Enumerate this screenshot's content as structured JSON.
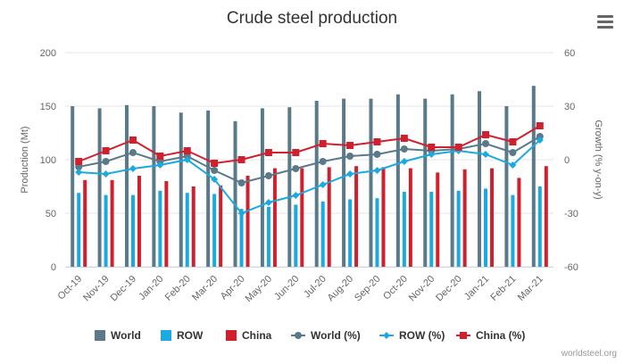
{
  "title": "Crude steel production",
  "menu_icon": "hamburger-menu-icon",
  "credit": "worldsteel.org",
  "colors": {
    "world": "#5a7a8a",
    "row": "#1ba9e1",
    "china": "#d0202e"
  },
  "chart_data": {
    "type": "bar+line",
    "title": "Crude steel production",
    "categories": [
      "Oct-19",
      "Nov-19",
      "Dec-19",
      "Jan-20",
      "Feb-20",
      "Mar-20",
      "Apr-20",
      "May-20",
      "Jun-20",
      "Jul-20",
      "Aug-20",
      "Sep-20",
      "Oct-20",
      "Nov-20",
      "Dec-20",
      "Jan-21",
      "Feb-21",
      "Mar-21"
    ],
    "y_left": {
      "label": "Production (Mt)",
      "min": 0,
      "max": 200,
      "ticks": [
        0,
        50,
        100,
        150,
        200
      ]
    },
    "y_right": {
      "label": "Growth (% y-on-y)",
      "min": -60,
      "max": 60,
      "ticks": [
        -60,
        -30,
        0,
        30,
        60
      ]
    },
    "bar_series": [
      {
        "name": "World",
        "axis": "left",
        "values": [
          150,
          148,
          151,
          150,
          144,
          146,
          136,
          148,
          149,
          155,
          157,
          157,
          161,
          157,
          161,
          164,
          150,
          169
        ]
      },
      {
        "name": "ROW",
        "axis": "left",
        "values": [
          69,
          67,
          67,
          71,
          69,
          68,
          54,
          56,
          58,
          61,
          63,
          64,
          70,
          70,
          71,
          73,
          67,
          75
        ]
      },
      {
        "name": "China",
        "axis": "left",
        "values": [
          81,
          81,
          85,
          80,
          75,
          76,
          85,
          92,
          92,
          93,
          94,
          93,
          92,
          88,
          91,
          92,
          83,
          94
        ]
      }
    ],
    "line_series": [
      {
        "name": "World (%)",
        "axis": "right",
        "values": [
          -4,
          -1,
          4,
          -1,
          2,
          -6,
          -13,
          -9,
          -5,
          -1,
          2,
          3,
          6,
          5,
          6,
          9,
          4,
          13
        ]
      },
      {
        "name": "ROW (%)",
        "axis": "right",
        "values": [
          -7,
          -8,
          -5,
          -3,
          0,
          -11,
          -30,
          -24,
          -20,
          -14,
          -8,
          -6,
          -1,
          3,
          5,
          3,
          -3,
          11
        ]
      },
      {
        "name": "China (%)",
        "axis": "right",
        "values": [
          -1,
          5,
          11,
          2,
          5,
          -2,
          0,
          4,
          4,
          9,
          8,
          10,
          12,
          7,
          7,
          14,
          10,
          19
        ]
      }
    ],
    "legend": {
      "position": "bottom",
      "items": [
        {
          "label": "World",
          "kind": "bar",
          "key": "world"
        },
        {
          "label": "ROW",
          "kind": "bar",
          "key": "row"
        },
        {
          "label": "China",
          "kind": "bar",
          "key": "china"
        },
        {
          "label": "World (%)",
          "kind": "line",
          "marker": "circle",
          "key": "world"
        },
        {
          "label": "ROW (%)",
          "kind": "line",
          "marker": "diamond",
          "key": "row"
        },
        {
          "label": "China (%)",
          "kind": "line",
          "marker": "square",
          "key": "china"
        }
      ]
    }
  }
}
